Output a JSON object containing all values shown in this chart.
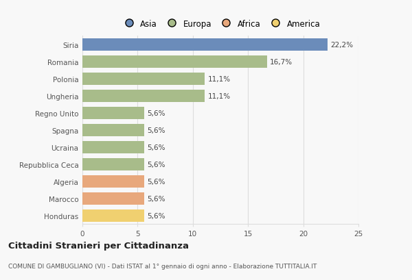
{
  "categories": [
    "Siria",
    "Romania",
    "Polonia",
    "Ungheria",
    "Regno Unito",
    "Spagna",
    "Ucraina",
    "Repubblica Ceca",
    "Algeria",
    "Marocco",
    "Honduras"
  ],
  "values": [
    22.2,
    16.7,
    11.1,
    11.1,
    5.6,
    5.6,
    5.6,
    5.6,
    5.6,
    5.6,
    5.6
  ],
  "labels": [
    "22,2%",
    "16,7%",
    "11,1%",
    "11,1%",
    "5,6%",
    "5,6%",
    "5,6%",
    "5,6%",
    "5,6%",
    "5,6%",
    "5,6%"
  ],
  "colors": [
    "#6b8cba",
    "#a8bc8a",
    "#a8bc8a",
    "#a8bc8a",
    "#a8bc8a",
    "#a8bc8a",
    "#a8bc8a",
    "#a8bc8a",
    "#e8a87c",
    "#e8a87c",
    "#f0d070"
  ],
  "legend": [
    {
      "label": "Asia",
      "color": "#6b8cba"
    },
    {
      "label": "Europa",
      "color": "#a8bc8a"
    },
    {
      "label": "Africa",
      "color": "#e8a87c"
    },
    {
      "label": "America",
      "color": "#f0d070"
    }
  ],
  "xlim": [
    0,
    25
  ],
  "xticks": [
    0,
    5,
    10,
    15,
    20,
    25
  ],
  "title": "Cittadini Stranieri per Cittadinanza",
  "subtitle": "COMUNE DI GAMBUGLIANO (VI) - Dati ISTAT al 1° gennaio di ogni anno - Elaborazione TUTTITALIA.IT",
  "background_color": "#f8f8f8",
  "grid_color": "#dddddd",
  "bar_height": 0.72,
  "label_fontsize": 7.5,
  "tick_fontsize": 7.5,
  "legend_fontsize": 8.5,
  "title_fontsize": 9.5,
  "subtitle_fontsize": 6.5
}
